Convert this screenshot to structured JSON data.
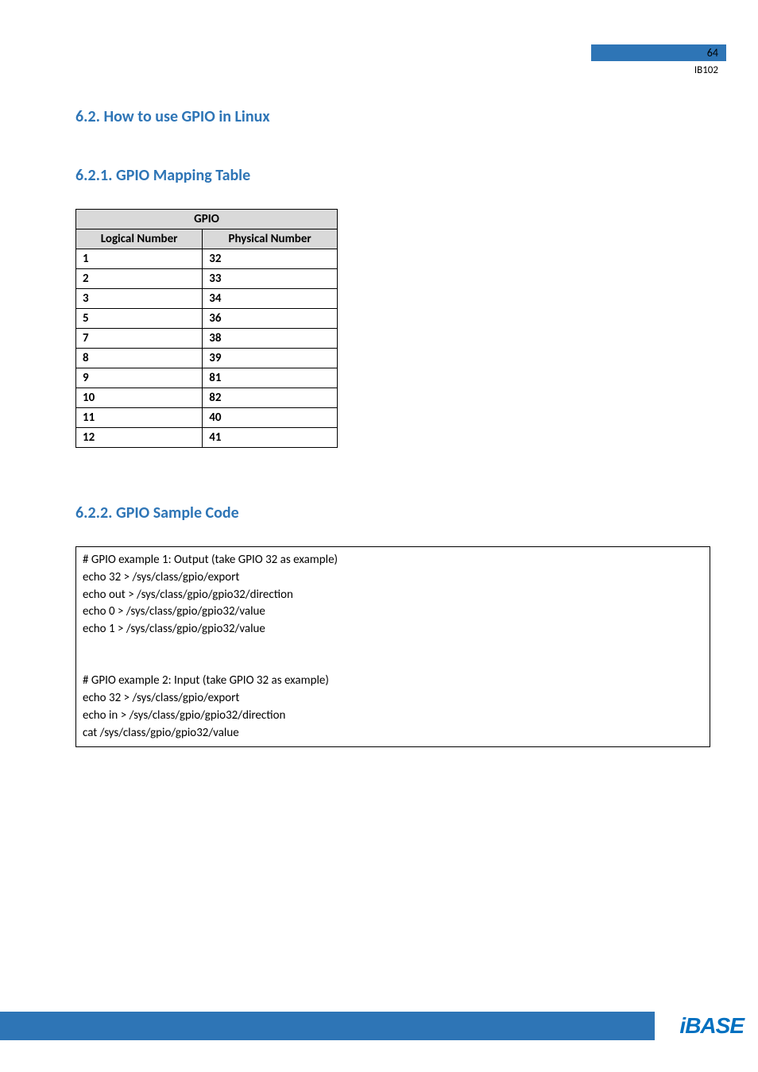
{
  "header": {
    "page_number": "64",
    "doc_id": "IB102",
    "page_number_bg": "#2e75b6"
  },
  "section_1": {
    "title": "6.2.  How to use GPIO in Linux"
  },
  "section_2": {
    "title": "6.2.1. GPIO Mapping Table"
  },
  "gpio_table": {
    "type": "table",
    "header_bg": "#d9d9d9",
    "border_color": "#000000",
    "title": "GPIO",
    "columns": [
      "Logical Number",
      "Physical Number"
    ],
    "rows": [
      [
        "1",
        "32"
      ],
      [
        "2",
        "33"
      ],
      [
        "3",
        "34"
      ],
      [
        "5",
        "36"
      ],
      [
        "7",
        "38"
      ],
      [
        "8",
        "39"
      ],
      [
        "9",
        "81"
      ],
      [
        "10",
        "82"
      ],
      [
        "11",
        "40"
      ],
      [
        "12",
        "41"
      ]
    ]
  },
  "section_3": {
    "title": "6.2.2. GPIO Sample Code"
  },
  "code_box": {
    "lines": [
      "# GPIO example 1: Output (take GPIO 32 as example)",
      "echo 32 > /sys/class/gpio/export",
      "echo out > /sys/class/gpio/gpio32/direction",
      "echo 0 > /sys/class/gpio/gpio32/value",
      "echo 1 > /sys/class/gpio/gpio32/value",
      "",
      "",
      "# GPIO example 2: Input (take GPIO 32 as example)",
      "echo 32 > /sys/class/gpio/export",
      "echo in > /sys/class/gpio/gpio32/direction",
      "cat /sys/class/gpio/gpio32/value"
    ]
  },
  "footer": {
    "bar_color": "#2e75b6",
    "logo_text": "iBASE",
    "logo_color": "#0070c0"
  }
}
